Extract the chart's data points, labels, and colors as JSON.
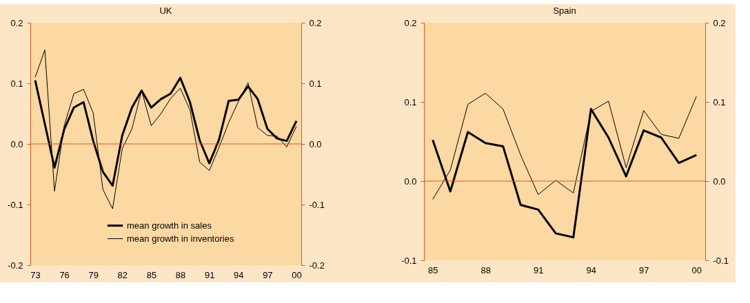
{
  "chart_data": [
    {
      "type": "line",
      "title": "UK",
      "categories": [
        "73",
        null,
        null,
        "76",
        null,
        null,
        "79",
        null,
        null,
        "82",
        null,
        null,
        "85",
        null,
        null,
        "88",
        null,
        null,
        "91",
        null,
        null,
        "94",
        null,
        null,
        "97",
        null,
        null,
        "00"
      ],
      "series": [
        {
          "name": "mean growth in sales",
          "color": "#000000",
          "values": [
            0.105,
            0.033,
            -0.039,
            0.024,
            0.06,
            0.069,
            0.005,
            -0.046,
            -0.069,
            0.014,
            0.06,
            0.088,
            0.06,
            0.074,
            0.083,
            0.109,
            0.069,
            0.006,
            -0.032,
            0.007,
            0.071,
            0.073,
            0.095,
            0.074,
            0.025,
            0.009,
            0.005,
            0.038
          ]
        },
        {
          "name": "mean growth in inventories",
          "color": "#000000",
          "values": [
            0.11,
            0.155,
            -0.078,
            0.03,
            0.083,
            0.09,
            0.051,
            -0.075,
            -0.107,
            -0.008,
            0.025,
            0.088,
            0.03,
            0.05,
            0.075,
            0.092,
            0.056,
            -0.03,
            -0.044,
            -0.006,
            0.035,
            0.07,
            0.101,
            0.027,
            0.014,
            0.013,
            -0.005,
            0.029
          ]
        }
      ],
      "ylim": [
        -0.2,
        0.2
      ],
      "yticks": [
        {
          "value": -0.2,
          "label": "-0.2"
        },
        {
          "value": -0.1,
          "label": "-0.1"
        },
        {
          "value": 0,
          "label": "0.0"
        },
        {
          "value": 0.1,
          "label": "0.1"
        },
        {
          "value": 0.2,
          "label": "0.2"
        }
      ],
      "y2lim": [
        -0.2,
        0.2
      ],
      "y2ticks": [
        {
          "value": -0.2,
          "label": "-0.2"
        },
        {
          "value": -0.1,
          "label": "-0.1"
        },
        {
          "value": 0,
          "label": "0.0"
        },
        {
          "value": 0.1,
          "label": "0.1"
        },
        {
          "value": 0.2,
          "label": "0.2"
        }
      ],
      "ref_lines": [
        {
          "axis": "y2",
          "value": 0,
          "color": "#e0541c"
        }
      ],
      "legend": "bottom",
      "grid": false
    },
    {
      "type": "line",
      "title": "Spain",
      "categories": [
        "85",
        null,
        null,
        "88",
        null,
        null,
        "91",
        null,
        null,
        "94",
        null,
        null,
        "97",
        null,
        null,
        "00"
      ],
      "series": [
        {
          "name": "mean growth in sales",
          "color": "#000000",
          "values": [
            0.052,
            -0.013,
            0.062,
            0.048,
            0.044,
            -0.03,
            -0.036,
            -0.066,
            -0.071,
            0.091,
            0.055,
            0.006,
            0.064,
            0.055,
            0.023,
            0.033
          ]
        },
        {
          "name": "mean growth in inventories",
          "color": "#000000",
          "values": [
            -0.023,
            0.014,
            0.097,
            0.111,
            0.091,
            0.033,
            -0.017,
            0.001,
            -0.015,
            0.088,
            0.101,
            0.017,
            0.089,
            0.059,
            0.054,
            0.107
          ]
        }
      ],
      "ylim": [
        -0.1,
        0.2
      ],
      "yticks": [
        {
          "value": -0.1,
          "label": "-0.1"
        },
        {
          "value": 0,
          "label": "0.0"
        },
        {
          "value": 0.1,
          "label": "0.1"
        },
        {
          "value": 0.2,
          "label": "0.2"
        }
      ],
      "y2lim": [
        -0.1,
        0.2
      ],
      "y2ticks": [
        {
          "value": -0.1,
          "label": "-0.1"
        },
        {
          "value": 0,
          "label": "0.0"
        },
        {
          "value": 0.1,
          "label": "0.1"
        },
        {
          "value": 0.2,
          "label": "0.2"
        }
      ],
      "ref_lines": [
        {
          "axis": "y2",
          "value": 0,
          "color": "#e0541c"
        }
      ],
      "legend": "top right",
      "grid": false
    }
  ]
}
